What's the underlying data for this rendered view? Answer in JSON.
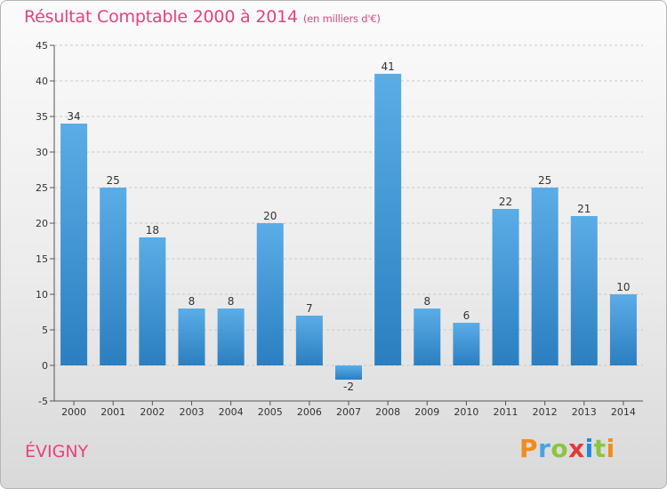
{
  "chart_data": {
    "type": "bar",
    "title": "Résultat Comptable 2000 à 2014",
    "unit_label": "(en milliers d'€)",
    "categories": [
      "2000",
      "2001",
      "2002",
      "2003",
      "2004",
      "2005",
      "2006",
      "2007",
      "2008",
      "2009",
      "2010",
      "2011",
      "2012",
      "2013",
      "2014"
    ],
    "values": [
      34,
      25,
      18,
      8,
      8,
      20,
      7,
      -2,
      41,
      8,
      6,
      22,
      25,
      21,
      10
    ],
    "ylim": [
      -5,
      45
    ],
    "yticks": [
      -5,
      0,
      5,
      10,
      15,
      20,
      25,
      30,
      35,
      40,
      45
    ],
    "grid": true,
    "xlabel": "",
    "ylabel": ""
  },
  "commune": "ÉVIGNY",
  "logo": {
    "p1": "P",
    "p2": "r",
    "p3": "o",
    "p4": "x",
    "p5": "i",
    "p6": "t",
    "p7": "i"
  },
  "colors": {
    "title": "#e8417e",
    "bar_top": "#5aade6",
    "bar_bottom": "#2b7fc0"
  }
}
